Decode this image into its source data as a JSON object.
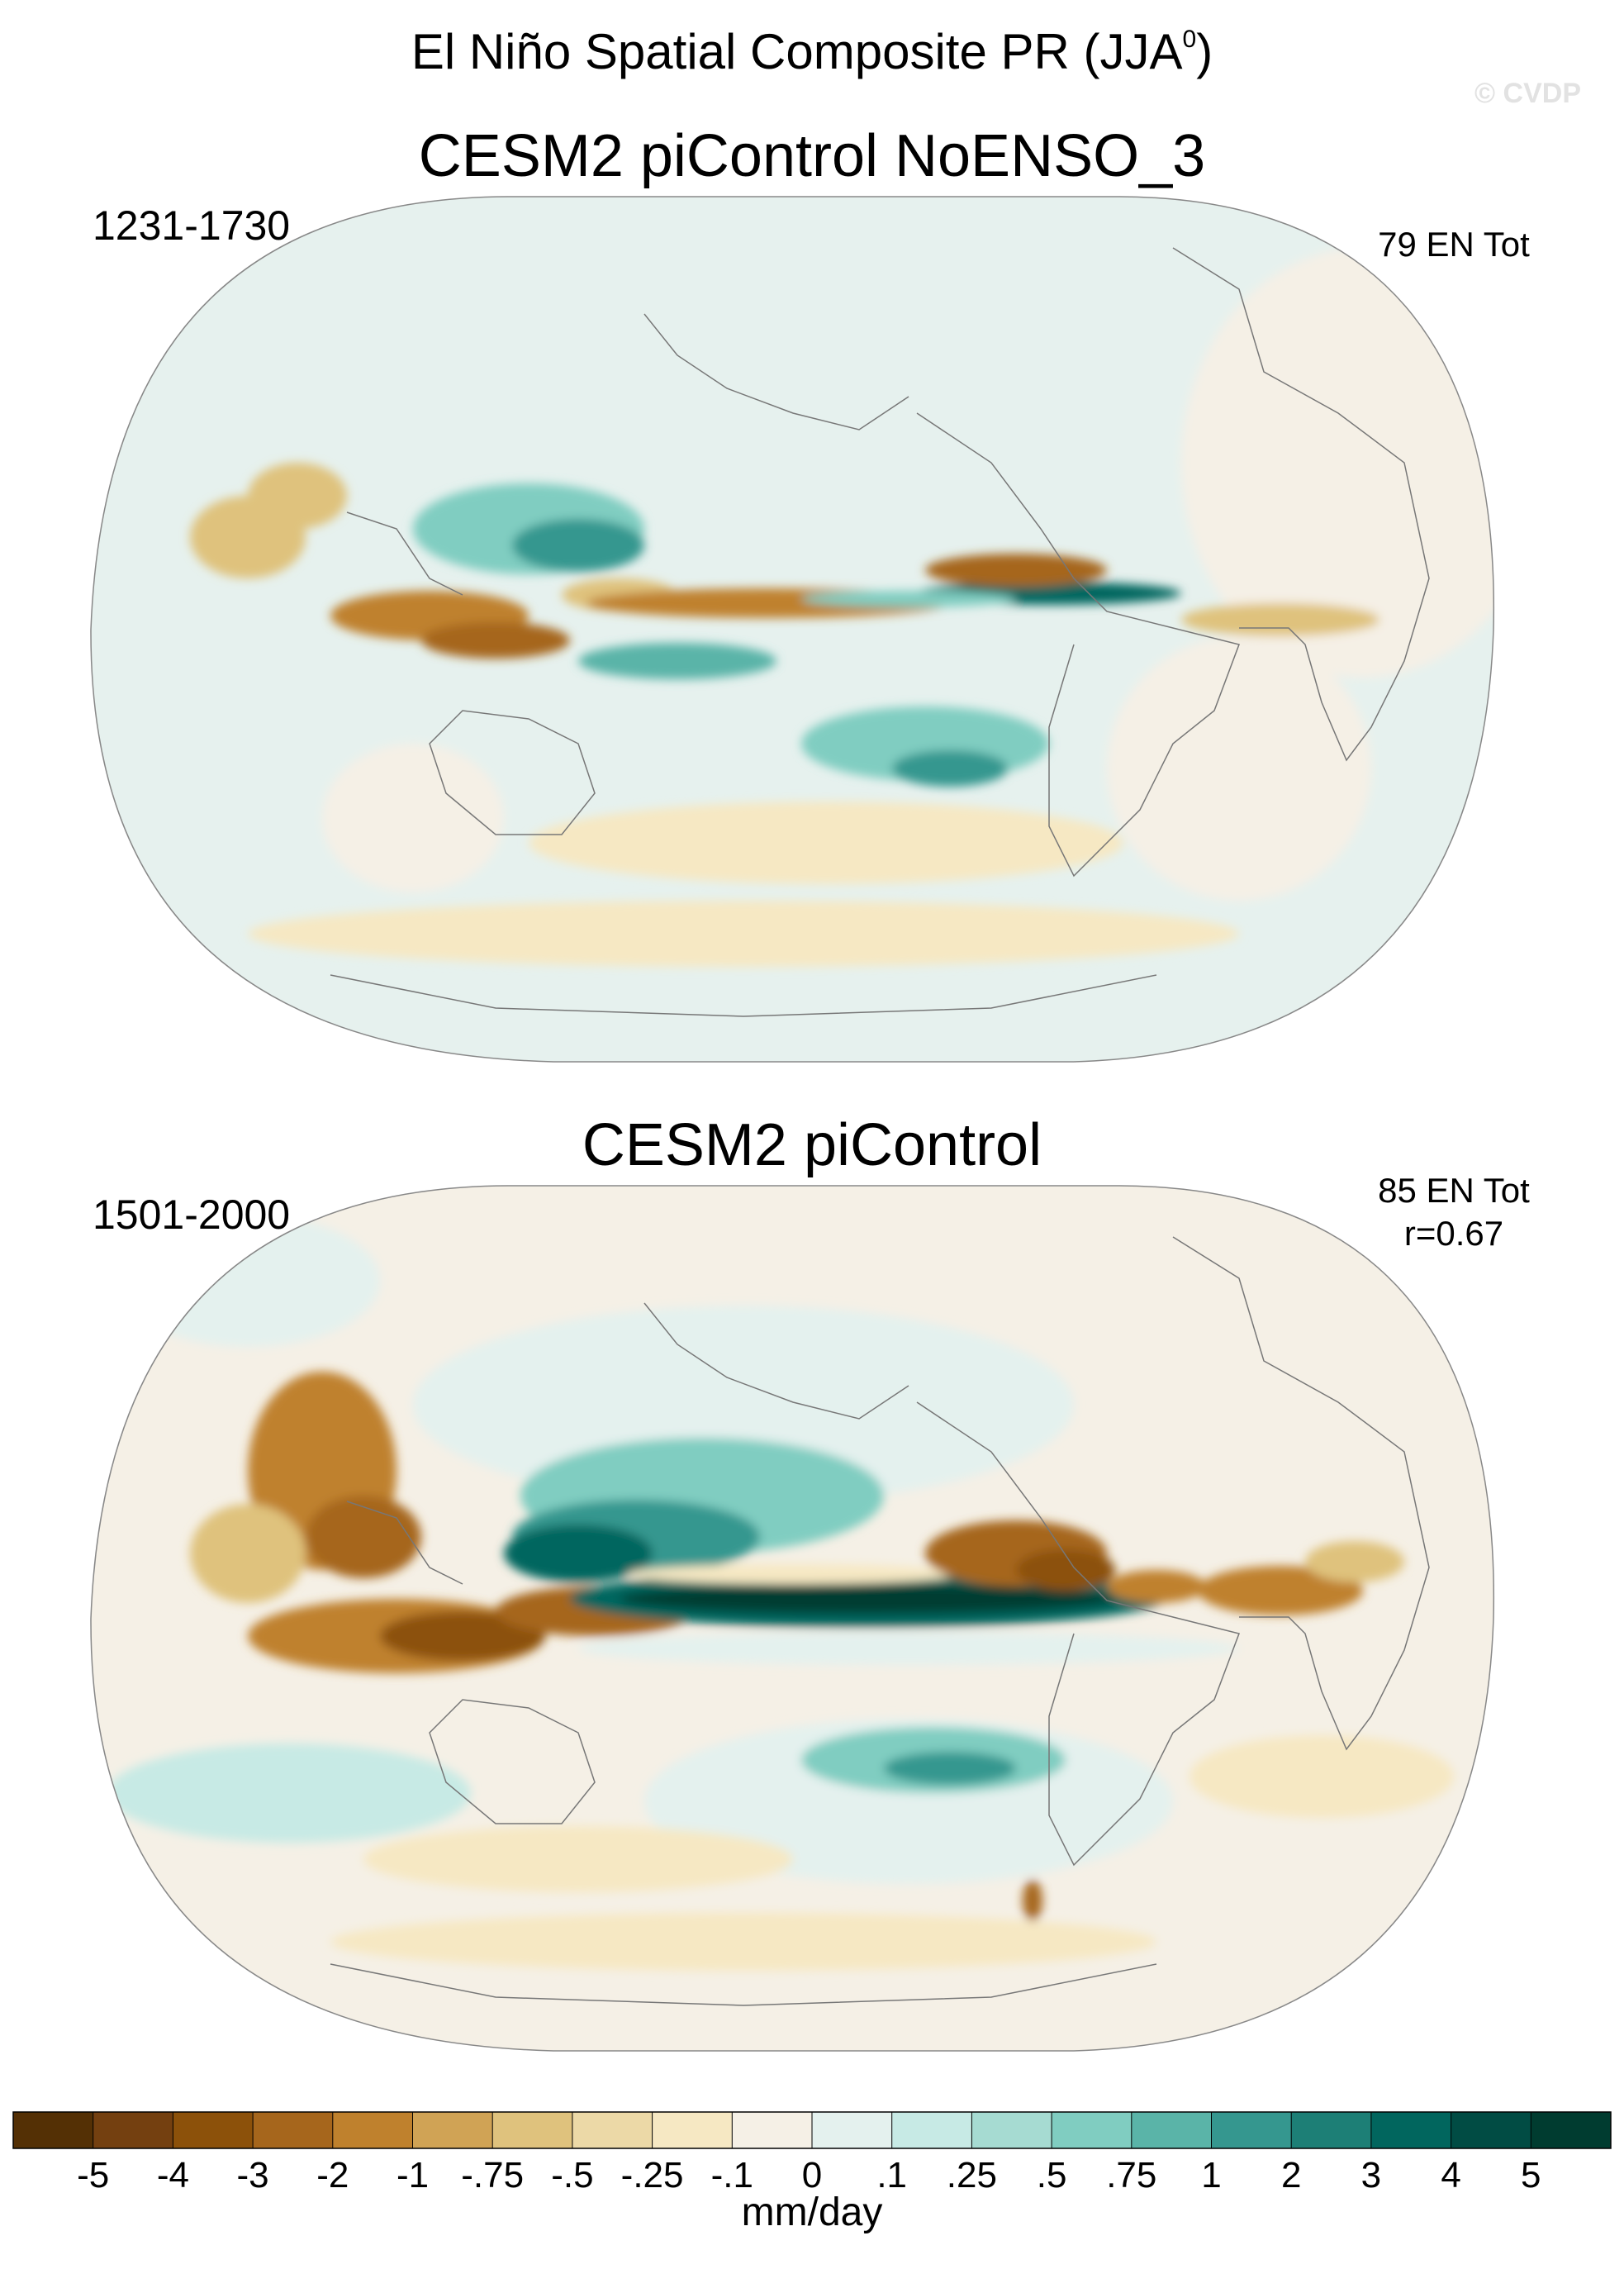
{
  "title": {
    "text": "El Niño Spatial Composite PR (JJA",
    "superscript": "0",
    "suffix": ")"
  },
  "watermark": "© CVDP",
  "panels": [
    {
      "title": "CESM2 piControl NoENSO_3",
      "period": "1231-1730",
      "stat_line1": "79 EN Tot",
      "stat_line2": ""
    },
    {
      "title": "CESM2 piControl",
      "period": "1501-2000",
      "stat_line1": "85 EN Tot",
      "stat_line2": "r=0.67"
    }
  ],
  "colorbar": {
    "units": "mm/day",
    "labels": [
      "-5",
      "-4",
      "-3",
      "-2",
      "-1",
      "-.75",
      "-.5",
      "-.25",
      "-.1",
      "0",
      ".1",
      ".25",
      ".5",
      ".75",
      "1",
      "2",
      "3",
      "4",
      "5"
    ],
    "colors": [
      "#543005",
      "#744010",
      "#8c510a",
      "#a6661c",
      "#bf812d",
      "#d0a355",
      "#dfc27d",
      "#ecd9a7",
      "#f6e8c3",
      "#f5f0e6",
      "#e4f1ee",
      "#c7eae5",
      "#a6dbd2",
      "#80cdc1",
      "#5ab4a8",
      "#35978f",
      "#1d7f76",
      "#01665e",
      "#014c44",
      "#003c30"
    ]
  },
  "map_data": {
    "projection": "Robinson",
    "variable": "precipitation anomaly",
    "season": "JJA",
    "units": "mm/day"
  }
}
